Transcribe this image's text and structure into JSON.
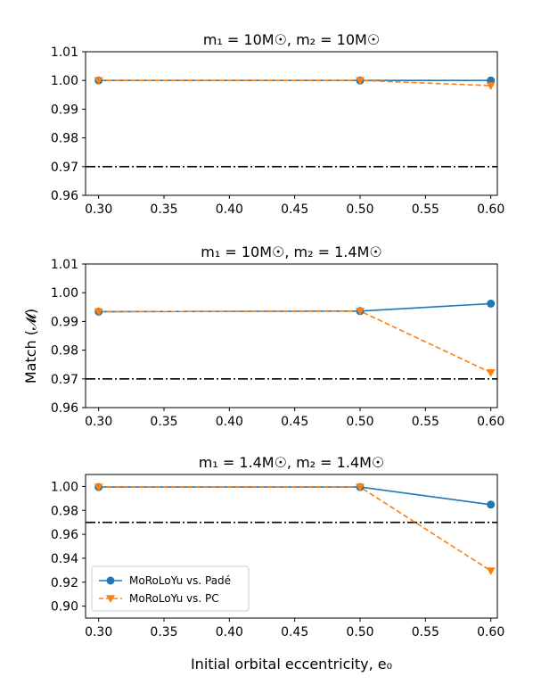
{
  "chart_data": {
    "type": "line",
    "ylabel": "Match (𝓜)",
    "xlabel": "Initial orbital eccentricity, e₀",
    "legend": {
      "placement": "lower-left",
      "panel": 2,
      "entries": [
        "MoRoLoYu vs. Padé",
        "MoRoLoYu vs. PC"
      ]
    },
    "colors": {
      "pade": "#1f77b4",
      "pc": "#ff7f0e",
      "threshold": "#000000"
    },
    "panels": [
      {
        "title": "m₁ = 10M☉, m₂ = 10M☉",
        "x": [
          0.3,
          0.5,
          0.6
        ],
        "xlim": [
          0.29,
          0.605
        ],
        "xticks": [
          0.3,
          0.35,
          0.4,
          0.45,
          0.5,
          0.55,
          0.6
        ],
        "xtick_labels": [
          "0.30",
          "0.35",
          "0.40",
          "0.45",
          "0.50",
          "0.55",
          "0.60"
        ],
        "ylim": [
          0.96,
          1.01
        ],
        "yticks": [
          0.96,
          0.97,
          0.98,
          0.99,
          1.0,
          1.01
        ],
        "ytick_labels": [
          "0.96",
          "0.97",
          "0.98",
          "0.99",
          "1.00",
          "1.01"
        ],
        "threshold": 0.97,
        "series": [
          {
            "name": "MoRoLoYu vs. Padé",
            "values": [
              1.0,
              1.0,
              1.0
            ]
          },
          {
            "name": "MoRoLoYu vs. PC",
            "values": [
              1.0,
              1.0,
              0.9982
            ]
          }
        ]
      },
      {
        "title": "m₁ = 10M☉, m₂ = 1.4M☉",
        "x": [
          0.3,
          0.5,
          0.6
        ],
        "xlim": [
          0.29,
          0.605
        ],
        "xticks": [
          0.3,
          0.35,
          0.4,
          0.45,
          0.5,
          0.55,
          0.6
        ],
        "xtick_labels": [
          "0.30",
          "0.35",
          "0.40",
          "0.45",
          "0.50",
          "0.55",
          "0.60"
        ],
        "ylim": [
          0.96,
          1.01
        ],
        "yticks": [
          0.96,
          0.97,
          0.98,
          0.99,
          1.0,
          1.01
        ],
        "ytick_labels": [
          "0.96",
          "0.97",
          "0.98",
          "0.99",
          "1.00",
          "1.01"
        ],
        "threshold": 0.97,
        "series": [
          {
            "name": "MoRoLoYu vs. Padé",
            "values": [
              0.9934,
              0.9936,
              0.9962
            ]
          },
          {
            "name": "MoRoLoYu vs. PC",
            "values": [
              0.9934,
              0.9936,
              0.9722
            ]
          }
        ]
      },
      {
        "title": "m₁ = 1.4M☉, m₂ = 1.4M☉",
        "x": [
          0.3,
          0.5,
          0.6
        ],
        "xlim": [
          0.29,
          0.605
        ],
        "xticks": [
          0.3,
          0.35,
          0.4,
          0.45,
          0.5,
          0.55,
          0.6
        ],
        "xtick_labels": [
          "0.30",
          "0.35",
          "0.40",
          "0.45",
          "0.50",
          "0.55",
          "0.60"
        ],
        "ylim": [
          0.89,
          1.01
        ],
        "yticks": [
          0.9,
          0.92,
          0.94,
          0.96,
          0.98,
          1.0
        ],
        "ytick_labels": [
          "0.90",
          "0.92",
          "0.94",
          "0.96",
          "0.98",
          "1.00"
        ],
        "threshold": 0.97,
        "series": [
          {
            "name": "MoRoLoYu vs. Padé",
            "values": [
              0.9995,
              0.9995,
              0.9848
            ]
          },
          {
            "name": "MoRoLoYu vs. PC",
            "values": [
              0.9995,
              0.9995,
              0.9295
            ]
          }
        ]
      }
    ]
  }
}
